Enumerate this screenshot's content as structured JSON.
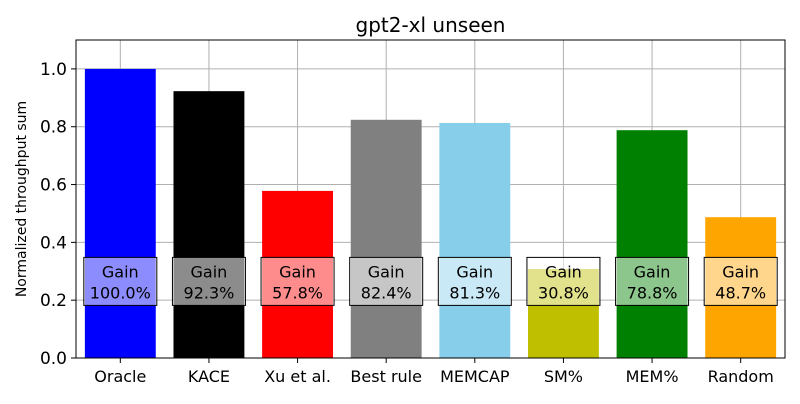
{
  "chart_data": {
    "type": "bar",
    "title": "gpt2-xl unseen",
    "xlabel": "",
    "ylabel": "Normalized throughput sum",
    "ylim": [
      0,
      1.1
    ],
    "yticks": [
      "0.0",
      "0.2",
      "0.4",
      "0.6",
      "0.8",
      "1.0"
    ],
    "grid": true,
    "categories": [
      "Oracle",
      "KACE",
      "Xu et al.",
      "Best rule",
      "MEMCAP",
      "SM%",
      "MEM%",
      "Random"
    ],
    "values": [
      1.0,
      0.923,
      0.578,
      0.824,
      0.813,
      0.308,
      0.788,
      0.487
    ],
    "colors": [
      "#0000ff",
      "#000000",
      "#ff0000",
      "#808080",
      "#87ceeb",
      "#bfbf00",
      "#008000",
      "#ffa500"
    ],
    "annotations": {
      "label": "Gain",
      "values": [
        "100.0%",
        "92.3%",
        "57.8%",
        "82.4%",
        "81.3%",
        "30.8%",
        "78.8%",
        "48.7%"
      ],
      "box_y_center": 0.265
    }
  }
}
